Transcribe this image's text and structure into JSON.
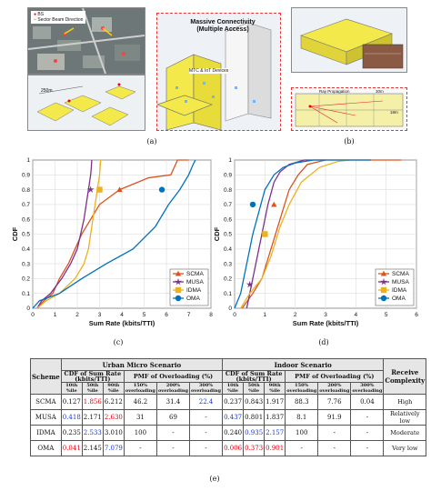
{
  "panels": {
    "a": {
      "caption": "(a)",
      "legend": [
        "BS",
        "Sector Beam Direction"
      ],
      "distance_label": "250m",
      "callout_title": "Massive Connectivity\n(Multiple Access)",
      "devices_label": "MTC & IoT Devices"
    },
    "b": {
      "caption": "(b)",
      "ray_label": "Ray Propagation",
      "dim1": "30m",
      "dim2": "18m"
    },
    "c": {
      "caption": "(c)"
    },
    "d": {
      "caption": "(d)"
    },
    "e": {
      "caption": "(e)"
    }
  },
  "chart_data": [
    {
      "type": "line",
      "id": "urban-micro-cdf",
      "xlabel": "Sum Rate (kbits/TTI)",
      "ylabel": "CDF",
      "xlim": [
        0,
        8
      ],
      "ylim": [
        0,
        1
      ],
      "xticks": [
        0,
        1,
        2,
        3,
        4,
        5,
        6,
        7,
        8
      ],
      "yticks": [
        0,
        0.1,
        0.2,
        0.3,
        0.4,
        0.5,
        0.6,
        0.7,
        0.8,
        0.9,
        1
      ],
      "grid": true,
      "legend_position": "bottom-right",
      "series": [
        {
          "name": "SCMA",
          "color": "#d9541e",
          "marker": "triangle",
          "x": [
            0.2,
            0.5,
            0.9,
            1.2,
            1.6,
            1.9,
            2.2,
            2.6,
            3.0,
            3.9,
            5.2,
            6.2,
            6.5,
            7.0
          ],
          "y": [
            0.0,
            0.05,
            0.1,
            0.2,
            0.3,
            0.4,
            0.5,
            0.6,
            0.7,
            0.8,
            0.88,
            0.9,
            1.0,
            1.0
          ],
          "marker_at": [
            3.9,
            0.8
          ]
        },
        {
          "name": "MUSA",
          "color": "#7e2f8e",
          "marker": "star",
          "x": [
            0.2,
            0.4,
            0.8,
            1.3,
            1.7,
            2.0,
            2.3,
            2.5,
            2.6,
            2.63,
            2.65
          ],
          "y": [
            0.0,
            0.05,
            0.1,
            0.2,
            0.3,
            0.4,
            0.6,
            0.8,
            0.9,
            0.95,
            1.0
          ],
          "marker_at": [
            2.6,
            0.8
          ]
        },
        {
          "name": "IDMA",
          "color": "#edb120",
          "marker": "square",
          "x": [
            0.2,
            0.6,
            1.2,
            1.9,
            2.3,
            2.5,
            2.7,
            2.9,
            3.0,
            3.05
          ],
          "y": [
            0.0,
            0.05,
            0.1,
            0.2,
            0.3,
            0.4,
            0.6,
            0.8,
            0.9,
            1.0
          ],
          "marker_at": [
            3.0,
            0.8
          ]
        },
        {
          "name": "OMA",
          "color": "#0072bd",
          "marker": "circle",
          "x": [
            0.0,
            0.3,
            1.2,
            2.2,
            3.3,
            4.5,
            5.5,
            6.1,
            6.6,
            7.0,
            7.2,
            7.3
          ],
          "y": [
            0.0,
            0.05,
            0.1,
            0.2,
            0.3,
            0.4,
            0.55,
            0.7,
            0.8,
            0.9,
            0.97,
            1.0
          ],
          "marker_at": [
            5.8,
            0.8
          ]
        }
      ]
    },
    {
      "type": "line",
      "id": "indoor-cdf",
      "xlabel": "Sum Rate (kbits/TTI)",
      "ylabel": "CDF",
      "xlim": [
        0,
        6
      ],
      "ylim": [
        0,
        1
      ],
      "xticks": [
        0,
        1,
        2,
        3,
        4,
        5,
        6
      ],
      "yticks": [
        0,
        0.1,
        0.2,
        0.3,
        0.4,
        0.5,
        0.6,
        0.7,
        0.8,
        0.9,
        1
      ],
      "grid": true,
      "legend_position": "bottom-right",
      "series": [
        {
          "name": "SCMA",
          "color": "#d9541e",
          "marker": "triangle",
          "x": [
            0.25,
            0.6,
            0.9,
            1.2,
            1.5,
            1.8,
            2.1,
            2.4,
            3.0,
            4.0,
            5.5
          ],
          "y": [
            0.0,
            0.1,
            0.2,
            0.4,
            0.6,
            0.8,
            0.9,
            0.97,
            1.0,
            1.0,
            1.0
          ],
          "marker_at": [
            1.3,
            0.7
          ]
        },
        {
          "name": "MUSA",
          "color": "#7e2f8e",
          "marker": "star",
          "x": [
            0.4,
            0.5,
            0.6,
            0.7,
            0.9,
            1.1,
            1.3,
            1.5,
            1.8,
            2.3,
            3.0
          ],
          "y": [
            0.0,
            0.1,
            0.2,
            0.3,
            0.5,
            0.7,
            0.85,
            0.92,
            0.97,
            1.0,
            1.0
          ],
          "marker_at": [
            0.5,
            0.16
          ]
        },
        {
          "name": "IDMA",
          "color": "#edb120",
          "marker": "square",
          "x": [
            0.2,
            0.5,
            0.9,
            1.2,
            1.5,
            1.8,
            2.2,
            2.8,
            3.4,
            3.8
          ],
          "y": [
            0.0,
            0.1,
            0.2,
            0.35,
            0.55,
            0.7,
            0.85,
            0.95,
            0.99,
            1.0
          ],
          "marker_at": [
            1.0,
            0.5
          ]
        },
        {
          "name": "OMA",
          "color": "#0072bd",
          "marker": "circle",
          "x": [
            0.0,
            0.2,
            0.4,
            0.6,
            0.8,
            1.0,
            1.3,
            1.6,
            2.0,
            2.6,
            4.5
          ],
          "y": [
            0.0,
            0.1,
            0.3,
            0.5,
            0.65,
            0.8,
            0.9,
            0.95,
            0.98,
            1.0,
            1.0
          ],
          "marker_at": [
            0.6,
            0.7
          ]
        }
      ]
    }
  ],
  "table": {
    "scheme_header": "Scheme",
    "urban_header": "Urban Micro Scenario",
    "indoor_header": "Indoor Scenario",
    "receive_header": "Receive Complexity",
    "cdf_header": "CDF of Sum Rate (kbits/TTI)",
    "pmf_header": "PMF of Overloading (%)",
    "sub_cdf": [
      "10th %ile",
      "50th %ile",
      "90th %ile"
    ],
    "sub_pmf": [
      "150% overloading",
      "200% overloading",
      "300% overloading"
    ],
    "rows": [
      {
        "scheme": "SCMA",
        "urban": [
          {
            "v": "0.127",
            "c": ""
          },
          {
            "v": "1.856",
            "c": "red"
          },
          {
            "v": "6.212",
            "c": ""
          },
          {
            "v": "46.2",
            "c": ""
          },
          {
            "v": "31.4",
            "c": ""
          },
          {
            "v": "22.4",
            "c": "blue"
          }
        ],
        "indoor": [
          {
            "v": "0.237",
            "c": ""
          },
          {
            "v": "0.843",
            "c": ""
          },
          {
            "v": "1.917",
            "c": ""
          },
          {
            "v": "88.3",
            "c": ""
          },
          {
            "v": "7.76",
            "c": ""
          },
          {
            "v": "0.04",
            "c": ""
          }
        ],
        "complexity": "High"
      },
      {
        "scheme": "MUSA",
        "urban": [
          {
            "v": "0.418",
            "c": "blue"
          },
          {
            "v": "2.171",
            "c": ""
          },
          {
            "v": "2.630",
            "c": "red"
          },
          {
            "v": "31",
            "c": ""
          },
          {
            "v": "69",
            "c": ""
          },
          {
            "v": "-",
            "c": ""
          }
        ],
        "indoor": [
          {
            "v": "0.437",
            "c": "blue"
          },
          {
            "v": "0.801",
            "c": ""
          },
          {
            "v": "1.837",
            "c": ""
          },
          {
            "v": "8.1",
            "c": ""
          },
          {
            "v": "91.9",
            "c": ""
          },
          {
            "v": "-",
            "c": ""
          }
        ],
        "complexity": "Relatively low"
      },
      {
        "scheme": "IDMA",
        "urban": [
          {
            "v": "0.235",
            "c": ""
          },
          {
            "v": "2.533",
            "c": "blue"
          },
          {
            "v": "3.010",
            "c": ""
          },
          {
            "v": "100",
            "c": ""
          },
          {
            "v": "-",
            "c": ""
          },
          {
            "v": "-",
            "c": ""
          }
        ],
        "indoor": [
          {
            "v": "0.240",
            "c": ""
          },
          {
            "v": "0.935",
            "c": "blue"
          },
          {
            "v": "2.157",
            "c": "blue"
          },
          {
            "v": "100",
            "c": ""
          },
          {
            "v": "-",
            "c": ""
          },
          {
            "v": "-",
            "c": ""
          }
        ],
        "complexity": "Moderate"
      },
      {
        "scheme": "OMA",
        "urban": [
          {
            "v": "0.041",
            "c": "red"
          },
          {
            "v": "2.145",
            "c": ""
          },
          {
            "v": "7.079",
            "c": "blue"
          },
          {
            "v": "-",
            "c": ""
          },
          {
            "v": "-",
            "c": ""
          },
          {
            "v": "-",
            "c": ""
          }
        ],
        "indoor": [
          {
            "v": "0.006",
            "c": "red"
          },
          {
            "v": "0.373",
            "c": "red"
          },
          {
            "v": "0.901",
            "c": "red"
          },
          {
            "v": "-",
            "c": ""
          },
          {
            "v": "-",
            "c": ""
          },
          {
            "v": "-",
            "c": ""
          }
        ],
        "complexity": "Very low"
      }
    ]
  }
}
